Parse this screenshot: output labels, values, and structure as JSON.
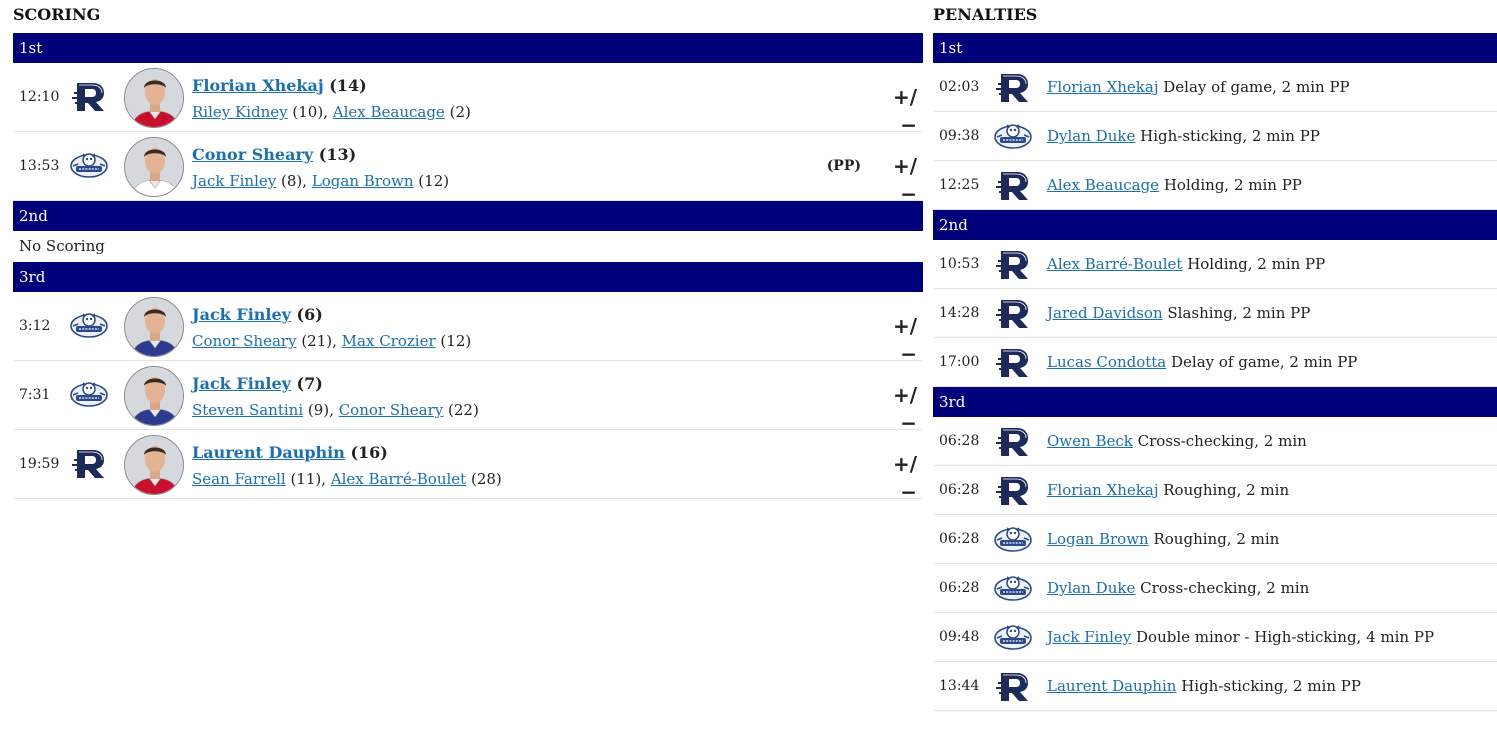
{
  "scoring": {
    "title": "SCORING",
    "plusminus_label": "+/−",
    "periods": [
      {
        "label": "1st",
        "empty_text": "",
        "goals": [
          {
            "time": "12:10",
            "team": "rocket",
            "scorer": "Florian Xhekaj",
            "scorer_count": "(14)",
            "assists": [
              {
                "name": "Riley Kidney",
                "count": "(10)"
              },
              {
                "name": "Alex Beaucage",
                "count": "(2)"
              }
            ],
            "tag": "",
            "jersey": "#c8102e"
          },
          {
            "time": "13:53",
            "team": "crunch",
            "scorer": "Conor Sheary",
            "scorer_count": "(13)",
            "assists": [
              {
                "name": "Jack Finley",
                "count": "(8)"
              },
              {
                "name": "Logan Brown",
                "count": "(12)"
              }
            ],
            "tag": "(PP)",
            "jersey": "#ffffff"
          }
        ]
      },
      {
        "label": "2nd",
        "empty_text": "No Scoring",
        "goals": []
      },
      {
        "label": "3rd",
        "empty_text": "",
        "goals": [
          {
            "time": "3:12",
            "team": "crunch",
            "scorer": "Jack Finley",
            "scorer_count": "(6)",
            "assists": [
              {
                "name": "Conor Sheary",
                "count": "(21)"
              },
              {
                "name": "Max Crozier",
                "count": "(12)"
              }
            ],
            "tag": "",
            "jersey": "#2b3b8f"
          },
          {
            "time": "7:31",
            "team": "crunch",
            "scorer": "Jack Finley",
            "scorer_count": "(7)",
            "assists": [
              {
                "name": "Steven Santini",
                "count": "(9)"
              },
              {
                "name": "Conor Sheary",
                "count": "(22)"
              }
            ],
            "tag": "",
            "jersey": "#2b3b8f"
          },
          {
            "time": "19:59",
            "team": "rocket",
            "scorer": "Laurent Dauphin",
            "scorer_count": "(16)",
            "assists": [
              {
                "name": "Sean Farrell",
                "count": "(11)"
              },
              {
                "name": "Alex Barré-Boulet",
                "count": "(28)"
              }
            ],
            "tag": "",
            "jersey": "#c8102e"
          }
        ]
      }
    ]
  },
  "penalties": {
    "title": "PENALTIES",
    "periods": [
      {
        "label": "1st",
        "items": [
          {
            "time": "02:03",
            "team": "rocket",
            "player": "Florian Xhekaj",
            "desc": "Delay of game, 2 min PP"
          },
          {
            "time": "09:38",
            "team": "crunch",
            "player": "Dylan Duke",
            "desc": "High-sticking, 2 min PP"
          },
          {
            "time": "12:25",
            "team": "rocket",
            "player": "Alex Beaucage",
            "desc": "Holding, 2 min PP"
          }
        ]
      },
      {
        "label": "2nd",
        "items": [
          {
            "time": "10:53",
            "team": "rocket",
            "player": "Alex Barré-Boulet",
            "desc": "Holding, 2 min PP"
          },
          {
            "time": "14:28",
            "team": "rocket",
            "player": "Jared Davidson",
            "desc": "Slashing, 2 min PP"
          },
          {
            "time": "17:00",
            "team": "rocket",
            "player": "Lucas Condotta",
            "desc": "Delay of game, 2 min PP"
          }
        ]
      },
      {
        "label": "3rd",
        "items": [
          {
            "time": "06:28",
            "team": "rocket",
            "player": "Owen Beck",
            "desc": "Cross-checking, 2 min"
          },
          {
            "time": "06:28",
            "team": "rocket",
            "player": "Florian Xhekaj",
            "desc": "Roughing, 2 min"
          },
          {
            "time": "06:28",
            "team": "crunch",
            "player": "Logan Brown",
            "desc": "Roughing, 2 min"
          },
          {
            "time": "06:28",
            "team": "crunch",
            "player": "Dylan Duke",
            "desc": "Cross-checking, 2 min"
          },
          {
            "time": "09:48",
            "team": "crunch",
            "player": "Jack Finley",
            "desc": "Double minor - High-sticking, 4 min PP"
          },
          {
            "time": "13:44",
            "team": "rocket",
            "player": "Laurent Dauphin",
            "desc": "High-sticking, 2 min PP"
          }
        ]
      }
    ]
  },
  "team_icons": {
    "rocket": "rocket-r-logo-icon",
    "crunch": "crunch-logo-icon"
  },
  "colors": {
    "period_bar": "#00017a",
    "link": "#1a6fb5",
    "logo_navy": "#1e2a5a"
  }
}
